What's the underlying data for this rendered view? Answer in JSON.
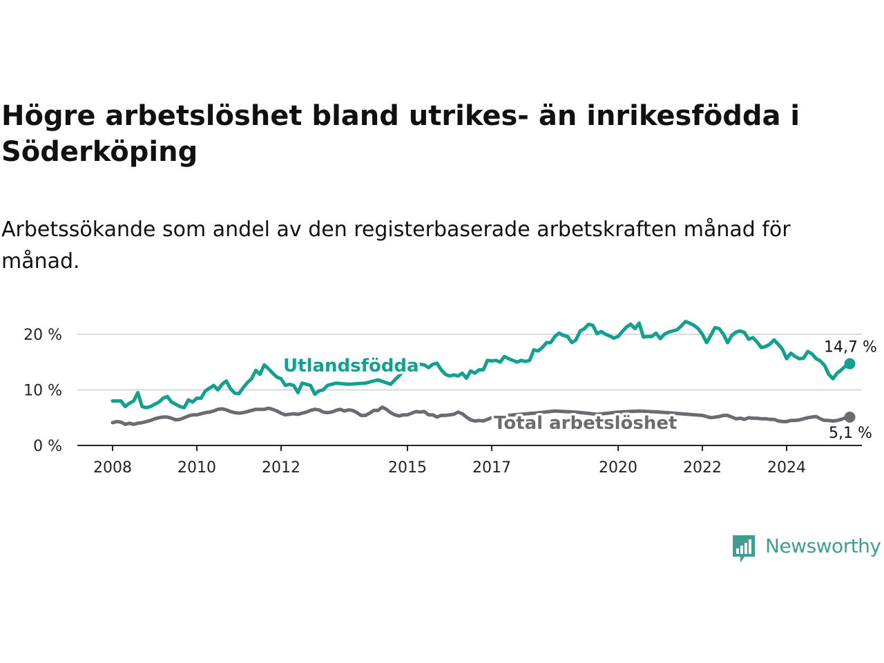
{
  "title": "Högre arbetslöshet bland utrikes- än inrikesfödda i Söderköping",
  "subtitle": "Arbetssökande som andel av den registerbaserade arbetskraften månad för månad.",
  "brand": {
    "name": "Newsworthy",
    "color": "#3f9d93",
    "icon": "bar-chart-speech-bubble-icon"
  },
  "chart_data": {
    "type": "line",
    "x_unit": "year",
    "xlim": [
      2007.75,
      2025.3
    ],
    "ylim": [
      0,
      20
    ],
    "grid": "horizontal",
    "y_ticks": [
      {
        "value": 0,
        "label": "0 %"
      },
      {
        "value": 10,
        "label": "10 %"
      },
      {
        "value": 20,
        "label": "20 %"
      }
    ],
    "x_ticks": [
      {
        "value": 2008,
        "label": "2008"
      },
      {
        "value": 2010,
        "label": "2010"
      },
      {
        "value": 2012,
        "label": "2012"
      },
      {
        "value": 2015,
        "label": "2015"
      },
      {
        "value": 2017,
        "label": "2017"
      },
      {
        "value": 2020,
        "label": "2020"
      },
      {
        "value": 2022,
        "label": "2022"
      },
      {
        "value": 2024,
        "label": "2024"
      }
    ],
    "series": [
      {
        "name": "Utlandsfödda",
        "color": "#13a08e",
        "label_at": {
          "x": 2012.05,
          "y": 13.3
        },
        "end_label": "14,7 %",
        "points": [
          [
            2008.0,
            8.0
          ],
          [
            2008.1,
            8.0
          ],
          [
            2008.2,
            8.0
          ],
          [
            2008.3,
            7.0
          ],
          [
            2008.4,
            7.6
          ],
          [
            2008.5,
            8.0
          ],
          [
            2008.6,
            9.5
          ],
          [
            2008.7,
            7.0
          ],
          [
            2008.8,
            6.8
          ],
          [
            2008.9,
            7.0
          ],
          [
            2009.0,
            7.4
          ],
          [
            2009.1,
            7.8
          ],
          [
            2009.2,
            8.5
          ],
          [
            2009.3,
            8.8
          ],
          [
            2009.4,
            7.8
          ],
          [
            2009.5,
            7.4
          ],
          [
            2009.6,
            7.0
          ],
          [
            2009.7,
            6.8
          ],
          [
            2009.8,
            8.2
          ],
          [
            2009.9,
            7.8
          ],
          [
            2010.0,
            8.5
          ],
          [
            2010.1,
            8.5
          ],
          [
            2010.2,
            9.8
          ],
          [
            2010.3,
            10.3
          ],
          [
            2010.4,
            10.8
          ],
          [
            2010.5,
            10.0
          ],
          [
            2010.6,
            11.0
          ],
          [
            2010.7,
            11.6
          ],
          [
            2010.8,
            10.2
          ],
          [
            2010.9,
            9.4
          ],
          [
            2011.0,
            9.3
          ],
          [
            2011.1,
            10.4
          ],
          [
            2011.2,
            11.3
          ],
          [
            2011.3,
            12.0
          ],
          [
            2011.4,
            13.5
          ],
          [
            2011.5,
            12.8
          ],
          [
            2011.6,
            14.5
          ],
          [
            2011.7,
            13.8
          ],
          [
            2011.8,
            13.0
          ],
          [
            2011.9,
            12.3
          ],
          [
            2012.0,
            12.0
          ],
          [
            2012.1,
            10.8
          ],
          [
            2012.2,
            11.0
          ],
          [
            2012.3,
            10.8
          ],
          [
            2012.4,
            9.5
          ],
          [
            2012.5,
            11.2
          ],
          [
            2012.6,
            11.0
          ],
          [
            2012.7,
            10.8
          ],
          [
            2012.8,
            9.2
          ],
          [
            2012.9,
            9.8
          ],
          [
            2013.0,
            10.0
          ],
          [
            2013.1,
            10.8
          ],
          [
            2013.3,
            11.2
          ],
          [
            2013.6,
            11.0
          ],
          [
            2014.0,
            11.2
          ],
          [
            2014.3,
            11.8
          ],
          [
            2014.6,
            11.0
          ],
          [
            2014.9,
            13.3
          ],
          [
            2015.1,
            14.0
          ],
          [
            2015.3,
            14.6
          ],
          [
            2015.4,
            14.5
          ],
          [
            2015.5,
            14.0
          ],
          [
            2015.6,
            14.6
          ],
          [
            2015.7,
            14.8
          ],
          [
            2015.8,
            13.6
          ],
          [
            2015.9,
            12.8
          ],
          [
            2016.0,
            12.5
          ],
          [
            2016.1,
            12.7
          ],
          [
            2016.2,
            12.5
          ],
          [
            2016.3,
            13.0
          ],
          [
            2016.4,
            12.1
          ],
          [
            2016.5,
            13.4
          ],
          [
            2016.6,
            13.0
          ],
          [
            2016.7,
            13.6
          ],
          [
            2016.8,
            13.6
          ],
          [
            2016.9,
            15.3
          ],
          [
            2017.0,
            15.2
          ],
          [
            2017.1,
            15.3
          ],
          [
            2017.2,
            15.0
          ],
          [
            2017.3,
            16.0
          ],
          [
            2017.4,
            15.6
          ],
          [
            2017.5,
            15.3
          ],
          [
            2017.6,
            15.0
          ],
          [
            2017.7,
            15.3
          ],
          [
            2017.8,
            15.1
          ],
          [
            2017.9,
            15.3
          ],
          [
            2018.0,
            17.2
          ],
          [
            2018.1,
            17.0
          ],
          [
            2018.2,
            17.6
          ],
          [
            2018.3,
            18.5
          ],
          [
            2018.4,
            18.5
          ],
          [
            2018.5,
            19.6
          ],
          [
            2018.6,
            20.2
          ],
          [
            2018.7,
            19.8
          ],
          [
            2018.8,
            19.6
          ],
          [
            2018.9,
            18.5
          ],
          [
            2019.0,
            19.0
          ],
          [
            2019.1,
            20.6
          ],
          [
            2019.2,
            21.0
          ],
          [
            2019.3,
            21.8
          ],
          [
            2019.4,
            21.6
          ],
          [
            2019.5,
            20.1
          ],
          [
            2019.6,
            20.5
          ],
          [
            2019.7,
            20.0
          ],
          [
            2019.8,
            19.7
          ],
          [
            2019.9,
            19.3
          ],
          [
            2020.0,
            19.6
          ],
          [
            2020.1,
            20.5
          ],
          [
            2020.2,
            21.3
          ],
          [
            2020.3,
            21.8
          ],
          [
            2020.4,
            21.0
          ],
          [
            2020.5,
            22.0
          ],
          [
            2020.6,
            19.5
          ],
          [
            2020.7,
            19.6
          ],
          [
            2020.8,
            19.6
          ],
          [
            2020.9,
            20.2
          ],
          [
            2021.0,
            19.2
          ],
          [
            2021.1,
            20.0
          ],
          [
            2021.2,
            20.4
          ],
          [
            2021.3,
            20.6
          ],
          [
            2021.4,
            20.8
          ],
          [
            2021.5,
            21.5
          ],
          [
            2021.6,
            22.3
          ],
          [
            2021.7,
            22.0
          ],
          [
            2021.8,
            21.6
          ],
          [
            2021.9,
            21.0
          ],
          [
            2022.0,
            20.0
          ],
          [
            2022.1,
            18.5
          ],
          [
            2022.2,
            19.8
          ],
          [
            2022.3,
            21.2
          ],
          [
            2022.4,
            21.0
          ],
          [
            2022.5,
            20.0
          ],
          [
            2022.6,
            18.5
          ],
          [
            2022.7,
            19.8
          ],
          [
            2022.8,
            20.4
          ],
          [
            2022.9,
            20.6
          ],
          [
            2023.0,
            20.3
          ],
          [
            2023.1,
            19.1
          ],
          [
            2023.2,
            19.4
          ],
          [
            2023.3,
            18.6
          ],
          [
            2023.4,
            17.6
          ],
          [
            2023.5,
            17.8
          ],
          [
            2023.6,
            18.2
          ],
          [
            2023.7,
            19.0
          ],
          [
            2023.8,
            18.2
          ],
          [
            2023.9,
            17.3
          ],
          [
            2024.0,
            15.6
          ],
          [
            2024.1,
            16.6
          ],
          [
            2024.2,
            16.0
          ],
          [
            2024.3,
            15.6
          ],
          [
            2024.4,
            15.7
          ],
          [
            2024.5,
            16.9
          ],
          [
            2024.6,
            16.5
          ],
          [
            2024.7,
            15.6
          ],
          [
            2024.8,
            15.2
          ],
          [
            2024.9,
            14.4
          ],
          [
            2025.0,
            12.8
          ],
          [
            2025.1,
            12.0
          ],
          [
            2025.2,
            13.0
          ],
          [
            2025.3,
            13.6
          ],
          [
            2025.4,
            14.3
          ],
          [
            2025.5,
            14.7
          ]
        ]
      },
      {
        "name": "Total arbetslöshet",
        "color": "#6d6a72",
        "label_at": {
          "x": 2017.05,
          "y": 3.0
        },
        "end_label": "5,1 %",
        "points": [
          [
            2008.0,
            4.1
          ],
          [
            2008.1,
            4.3
          ],
          [
            2008.2,
            4.2
          ],
          [
            2008.3,
            3.8
          ],
          [
            2008.4,
            4.0
          ],
          [
            2008.5,
            3.8
          ],
          [
            2008.6,
            4.0
          ],
          [
            2008.7,
            4.1
          ],
          [
            2008.8,
            4.3
          ],
          [
            2008.9,
            4.5
          ],
          [
            2009.0,
            4.8
          ],
          [
            2009.1,
            5.0
          ],
          [
            2009.2,
            5.1
          ],
          [
            2009.3,
            5.1
          ],
          [
            2009.4,
            4.9
          ],
          [
            2009.5,
            4.6
          ],
          [
            2009.6,
            4.7
          ],
          [
            2009.7,
            5.0
          ],
          [
            2009.8,
            5.3
          ],
          [
            2009.9,
            5.5
          ],
          [
            2010.0,
            5.5
          ],
          [
            2010.1,
            5.7
          ],
          [
            2010.2,
            5.9
          ],
          [
            2010.3,
            6.0
          ],
          [
            2010.4,
            6.2
          ],
          [
            2010.5,
            6.5
          ],
          [
            2010.6,
            6.6
          ],
          [
            2010.7,
            6.4
          ],
          [
            2010.8,
            6.1
          ],
          [
            2010.9,
            5.9
          ],
          [
            2011.0,
            5.8
          ],
          [
            2011.1,
            5.9
          ],
          [
            2011.2,
            6.1
          ],
          [
            2011.3,
            6.3
          ],
          [
            2011.4,
            6.5
          ],
          [
            2011.5,
            6.5
          ],
          [
            2011.6,
            6.5
          ],
          [
            2011.7,
            6.7
          ],
          [
            2011.8,
            6.5
          ],
          [
            2011.9,
            6.2
          ],
          [
            2012.0,
            5.8
          ],
          [
            2012.1,
            5.5
          ],
          [
            2012.2,
            5.6
          ],
          [
            2012.3,
            5.7
          ],
          [
            2012.4,
            5.6
          ],
          [
            2012.5,
            5.8
          ],
          [
            2012.6,
            6.0
          ],
          [
            2012.7,
            6.3
          ],
          [
            2012.8,
            6.5
          ],
          [
            2012.9,
            6.4
          ],
          [
            2013.0,
            6.0
          ],
          [
            2013.1,
            5.9
          ],
          [
            2013.2,
            6.0
          ],
          [
            2013.3,
            6.3
          ],
          [
            2013.4,
            6.5
          ],
          [
            2013.5,
            6.2
          ],
          [
            2013.6,
            6.4
          ],
          [
            2013.7,
            6.3
          ],
          [
            2013.8,
            5.9
          ],
          [
            2013.9,
            5.4
          ],
          [
            2014.0,
            5.4
          ],
          [
            2014.1,
            5.8
          ],
          [
            2014.2,
            6.3
          ],
          [
            2014.3,
            6.3
          ],
          [
            2014.4,
            6.9
          ],
          [
            2014.5,
            6.5
          ],
          [
            2014.6,
            5.9
          ],
          [
            2014.7,
            5.5
          ],
          [
            2014.8,
            5.3
          ],
          [
            2014.9,
            5.5
          ],
          [
            2015.0,
            5.5
          ],
          [
            2015.1,
            5.8
          ],
          [
            2015.2,
            6.1
          ],
          [
            2015.3,
            6.0
          ],
          [
            2015.4,
            6.1
          ],
          [
            2015.5,
            5.5
          ],
          [
            2015.6,
            5.5
          ],
          [
            2015.7,
            5.1
          ],
          [
            2015.8,
            5.4
          ],
          [
            2015.9,
            5.4
          ],
          [
            2016.0,
            5.5
          ],
          [
            2016.1,
            5.6
          ],
          [
            2016.2,
            6.0
          ],
          [
            2016.3,
            5.7
          ],
          [
            2016.4,
            5.1
          ],
          [
            2016.5,
            4.6
          ],
          [
            2016.6,
            4.4
          ],
          [
            2016.7,
            4.5
          ],
          [
            2016.8,
            4.4
          ],
          [
            2016.9,
            4.7
          ],
          [
            2017.0,
            5.0
          ],
          [
            2017.2,
            5.2
          ],
          [
            2017.5,
            5.5
          ],
          [
            2018.0,
            5.8
          ],
          [
            2018.5,
            6.2
          ],
          [
            2019.0,
            6.0
          ],
          [
            2019.5,
            5.6
          ],
          [
            2020.0,
            6.0
          ],
          [
            2020.5,
            6.2
          ],
          [
            2021.0,
            6.0
          ],
          [
            2021.5,
            5.7
          ],
          [
            2022.0,
            5.4
          ],
          [
            2022.2,
            5.0
          ],
          [
            2022.4,
            5.2
          ],
          [
            2022.5,
            5.4
          ],
          [
            2022.6,
            5.4
          ],
          [
            2022.7,
            5.1
          ],
          [
            2022.8,
            4.8
          ],
          [
            2022.9,
            4.9
          ],
          [
            2023.0,
            4.7
          ],
          [
            2023.1,
            5.0
          ],
          [
            2023.2,
            4.9
          ],
          [
            2023.3,
            4.9
          ],
          [
            2023.4,
            4.8
          ],
          [
            2023.5,
            4.8
          ],
          [
            2023.6,
            4.7
          ],
          [
            2023.7,
            4.7
          ],
          [
            2023.8,
            4.4
          ],
          [
            2023.9,
            4.3
          ],
          [
            2024.0,
            4.3
          ],
          [
            2024.1,
            4.5
          ],
          [
            2024.2,
            4.5
          ],
          [
            2024.3,
            4.6
          ],
          [
            2024.4,
            4.8
          ],
          [
            2024.5,
            5.0
          ],
          [
            2024.6,
            5.1
          ],
          [
            2024.7,
            5.2
          ],
          [
            2024.8,
            4.8
          ],
          [
            2024.9,
            4.5
          ],
          [
            2025.0,
            4.5
          ],
          [
            2025.1,
            4.4
          ],
          [
            2025.2,
            4.5
          ],
          [
            2025.3,
            4.7
          ],
          [
            2025.4,
            5.0
          ],
          [
            2025.5,
            5.1
          ]
        ]
      }
    ]
  }
}
